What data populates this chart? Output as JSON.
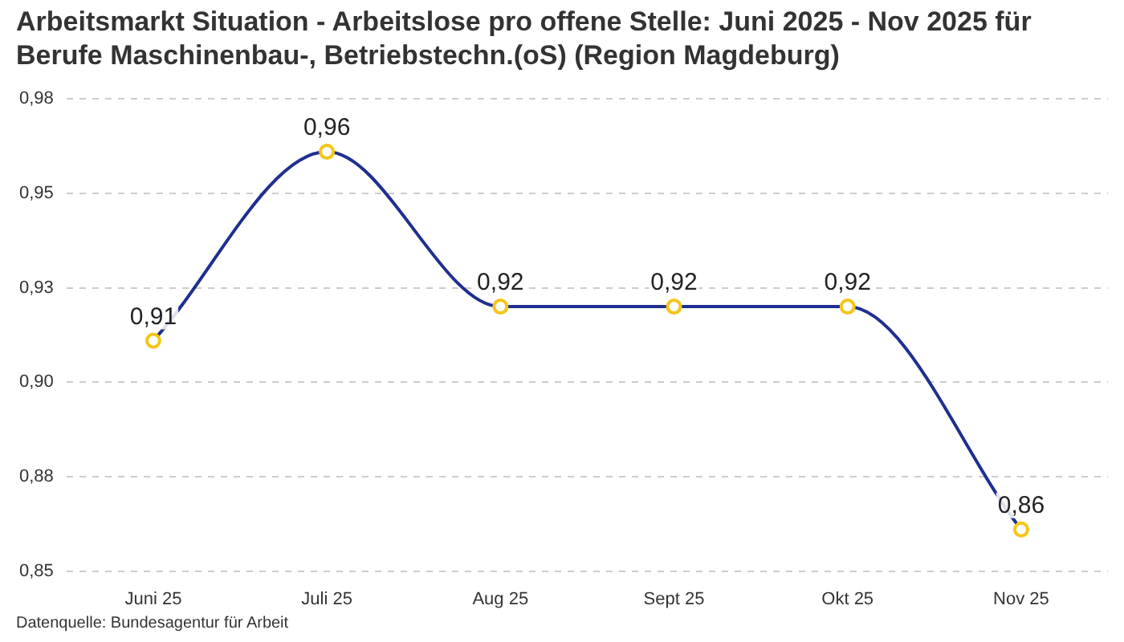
{
  "chart_data": {
    "type": "line",
    "title": "Arbeitsmarkt Situation - Arbeitslose pro offene Stelle: Juni 2025 - Nov 2025 für Berufe Maschinenbau-, Betriebstechn.(oS) (Region Magdeburg)",
    "categories": [
      "Juni 25",
      "Juli 25",
      "Aug 25",
      "Sept 25",
      "Okt 25",
      "Nov 25"
    ],
    "series": [
      {
        "color": "#1f2f8f",
        "colors": [
          "#f5c518",
          "#f5c518",
          "#f5c518",
          "#f5c518",
          "#f5c518",
          "#f5c518"
        ],
        "values": [
          0.911,
          0.961,
          0.92,
          0.92,
          0.92,
          0.861
        ],
        "value_labels": [
          "0,91",
          "0,96",
          "0,92",
          "0,92",
          "0,92",
          "0,86"
        ]
      }
    ],
    "ylim": [
      0.85,
      0.975
    ],
    "yticks": [
      {
        "value": 0.85,
        "label": "0,85"
      },
      {
        "value": 0.875,
        "label": "0,88"
      },
      {
        "value": 0.9,
        "label": "0,90"
      },
      {
        "value": 0.925,
        "label": "0,93"
      },
      {
        "value": 0.95,
        "label": "0,95"
      },
      {
        "value": 0.975,
        "label": "0,98"
      }
    ],
    "grid": "y",
    "legend": false,
    "marker": "circle",
    "line_style": "solid",
    "annotations": [
      "Datenquelle: Bundesagentur für Arbeit"
    ]
  }
}
